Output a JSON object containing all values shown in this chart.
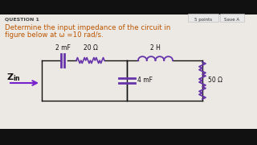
{
  "bg_color": "#ece9e4",
  "outer_bg": "#111111",
  "title_text": "QUESTION 1",
  "points_text": "5 points",
  "save_text": "Save A",
  "description_line1": "Determine the input impedance of the circuit in",
  "description_line2": "figure below at ω =10 rad/s.",
  "label_2mF": "2 mF",
  "label_20ohm": "20 Ω",
  "label_2H": "2 H",
  "label_4mF": "4 mF",
  "label_50ohm": "50 Ω",
  "wire_color": "#111111",
  "component_color": "#6633aa",
  "arrow_color": "#7722cc",
  "text_color": "#111111",
  "desc_color": "#bb5500",
  "title_color": "#444444",
  "button_bg": "#e8e8e8",
  "button_border": "#bbbbbb"
}
